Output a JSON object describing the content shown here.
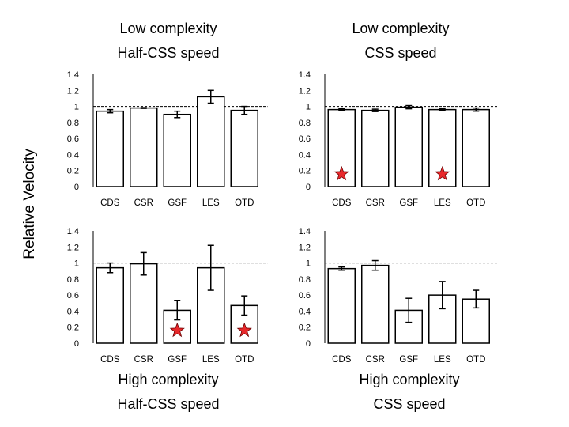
{
  "y_axis_label": "Relative Velocity",
  "panel_headers": {
    "top_left": [
      "Low complexity",
      "Half-CSS speed"
    ],
    "top_right": [
      "Low complexity",
      "CSS speed"
    ],
    "bottom_left": [
      "High complexity",
      "Half-CSS speed"
    ],
    "bottom_right": [
      "High complexity",
      "CSS speed"
    ]
  },
  "chart_data": [
    {
      "type": "bar",
      "panel": "top-left",
      "categories": [
        "CDS",
        "CSR",
        "GSF",
        "LES",
        "OTD"
      ],
      "values": [
        0.94,
        0.98,
        0.9,
        1.12,
        0.95
      ],
      "errors": [
        0.02,
        0.005,
        0.04,
        0.08,
        0.05
      ],
      "stars": [],
      "yticks": [
        "0",
        "0.2",
        "0.4",
        "0.6",
        "0.8",
        "1",
        "1.2",
        "1.4"
      ],
      "ylim": [
        0,
        1.4
      ],
      "reference_line": 1
    },
    {
      "type": "bar",
      "panel": "top-right",
      "categories": [
        "CDS",
        "CSR",
        "GSF",
        "LES",
        "OTD"
      ],
      "values": [
        0.96,
        0.95,
        0.99,
        0.96,
        0.96
      ],
      "errors": [
        0.01,
        0.015,
        0.02,
        0.01,
        0.02
      ],
      "stars": [
        "CDS",
        "LES"
      ],
      "yticks": [
        "0",
        "0.2",
        "0.4",
        "0.6",
        "0.8",
        "1",
        "1.2",
        "1.4"
      ],
      "ylim": [
        0,
        1.4
      ],
      "reference_line": 1
    },
    {
      "type": "bar",
      "panel": "bottom-left",
      "categories": [
        "CDS",
        "CSR",
        "GSF",
        "LES",
        "OTD"
      ],
      "values": [
        0.94,
        0.99,
        0.41,
        0.94,
        0.47
      ],
      "errors": [
        0.06,
        0.14,
        0.12,
        0.28,
        0.12
      ],
      "stars": [
        "GSF",
        "OTD"
      ],
      "yticks": [
        "0",
        "0.2",
        "0.4",
        "0.6",
        "0.8",
        "1",
        "1.2",
        "1.4"
      ],
      "ylim": [
        0,
        1.4
      ],
      "reference_line": 1
    },
    {
      "type": "bar",
      "panel": "bottom-right",
      "categories": [
        "CDS",
        "CSR",
        "GSF",
        "LES",
        "OTD"
      ],
      "values": [
        0.93,
        0.97,
        0.41,
        0.6,
        0.55
      ],
      "errors": [
        0.02,
        0.06,
        0.15,
        0.17,
        0.11
      ],
      "stars": [],
      "yticks": [
        "0",
        "0.2",
        "0.4",
        "0.6",
        "0.8",
        "1",
        "1.2",
        "1.4"
      ],
      "ylim": [
        0,
        1.4
      ],
      "reference_line": 1
    }
  ]
}
